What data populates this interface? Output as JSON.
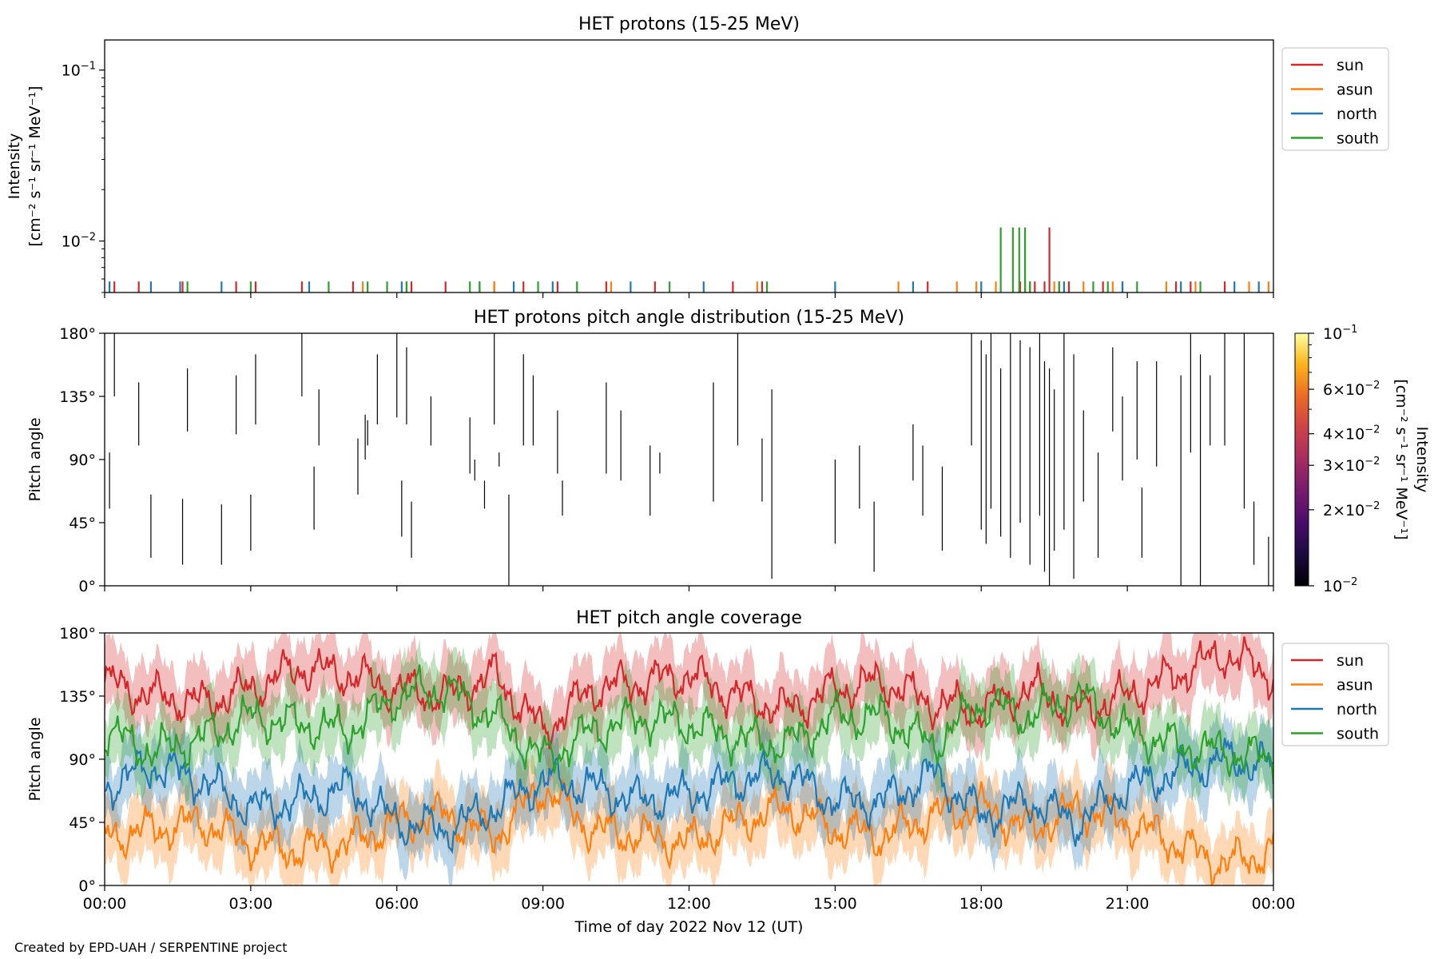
{
  "footer": "Created by EPD-UAH / SERPENTINE project",
  "colors": {
    "sun": "#d62728",
    "asun": "#ff7f0e",
    "north": "#1f77b4",
    "south": "#2ca02c"
  },
  "chart_data": [
    {
      "type": "line",
      "id": "intensity",
      "title": "HET protons (15-25 MeV)",
      "ylabel_lines": [
        "Intensity",
        "[cm⁻² s⁻¹ sr⁻¹ MeV⁻¹]"
      ],
      "yscale": "log",
      "ylim": [
        0.005,
        0.15
      ],
      "yticks": [
        {
          "value": 0.1,
          "base": "10",
          "exp": "−1"
        },
        {
          "value": 0.01,
          "base": "10",
          "exp": "−2"
        }
      ],
      "xlim_hours": [
        0,
        24
      ],
      "legend": {
        "position": "outside-right",
        "entries": [
          "sun",
          "asun",
          "north",
          "south"
        ]
      },
      "series": [
        {
          "name": "sun",
          "key": "sun",
          "spikes": [
            [
              0.2,
              0.0058
            ],
            [
              0.7,
              0.0058
            ],
            [
              1.6,
              0.0058
            ],
            [
              2.7,
              0.0058
            ],
            [
              3.1,
              0.0058
            ],
            [
              4.05,
              0.0058
            ],
            [
              5.1,
              0.0058
            ],
            [
              6.2,
              0.0058
            ],
            [
              6.3,
              0.0058
            ],
            [
              7.0,
              0.0058
            ],
            [
              8.0,
              0.0058
            ],
            [
              8.6,
              0.0058
            ],
            [
              9.3,
              0.0058
            ],
            [
              10.3,
              0.0058
            ],
            [
              11.3,
              0.0058
            ],
            [
              12.9,
              0.0058
            ],
            [
              13.5,
              0.0058
            ],
            [
              16.9,
              0.0058
            ],
            [
              18.8,
              0.0058
            ],
            [
              18.9,
              0.0058
            ],
            [
              19.0,
              0.0058
            ],
            [
              19.1,
              0.0058
            ],
            [
              19.3,
              0.0058
            ],
            [
              19.4,
              0.012
            ],
            [
              19.6,
              0.0058
            ],
            [
              19.8,
              0.0058
            ],
            [
              20.5,
              0.0058
            ],
            [
              20.9,
              0.0058
            ],
            [
              22.0,
              0.0058
            ],
            [
              22.3,
              0.0058
            ],
            [
              23.0,
              0.0058
            ]
          ]
        },
        {
          "name": "asun",
          "key": "asun",
          "spikes": [
            [
              5.3,
              0.0058
            ],
            [
              8.0,
              0.0058
            ],
            [
              10.4,
              0.0058
            ],
            [
              13.4,
              0.0058
            ],
            [
              16.3,
              0.0058
            ],
            [
              17.5,
              0.0058
            ],
            [
              17.9,
              0.0058
            ],
            [
              18.3,
              0.0058
            ],
            [
              19.5,
              0.0058
            ],
            [
              20.1,
              0.0058
            ],
            [
              20.7,
              0.0058
            ],
            [
              21.8,
              0.0058
            ],
            [
              22.4,
              0.0058
            ],
            [
              23.5,
              0.0058
            ],
            [
              23.9,
              0.0058
            ]
          ]
        },
        {
          "name": "north",
          "key": "north",
          "spikes": [
            [
              0.1,
              0.0058
            ],
            [
              0.95,
              0.0058
            ],
            [
              1.55,
              0.0058
            ],
            [
              2.4,
              0.0058
            ],
            [
              4.2,
              0.0058
            ],
            [
              6.1,
              0.0058
            ],
            [
              7.7,
              0.0058
            ],
            [
              8.4,
              0.0058
            ],
            [
              9.2,
              0.0058
            ],
            [
              10.8,
              0.0058
            ],
            [
              12.3,
              0.0058
            ],
            [
              15.0,
              0.0058
            ],
            [
              16.6,
              0.0058
            ],
            [
              18.0,
              0.0058
            ],
            [
              19.7,
              0.0058
            ],
            [
              20.9,
              0.0058
            ],
            [
              22.1,
              0.0058
            ],
            [
              23.2,
              0.0058
            ],
            [
              23.7,
              0.0058
            ]
          ]
        },
        {
          "name": "south",
          "key": "south",
          "spikes": [
            [
              1.7,
              0.0058
            ],
            [
              3.0,
              0.0058
            ],
            [
              4.6,
              0.0058
            ],
            [
              5.4,
              0.0058
            ],
            [
              5.8,
              0.0058
            ],
            [
              6.2,
              0.0058
            ],
            [
              7.5,
              0.0058
            ],
            [
              7.7,
              0.0058
            ],
            [
              8.9,
              0.0058
            ],
            [
              9.7,
              0.0058
            ],
            [
              11.6,
              0.0058
            ],
            [
              13.6,
              0.0058
            ],
            [
              18.4,
              0.012
            ],
            [
              18.65,
              0.012
            ],
            [
              18.78,
              0.012
            ],
            [
              18.9,
              0.012
            ],
            [
              19.0,
              0.0058
            ],
            [
              19.6,
              0.0058
            ],
            [
              20.3,
              0.0058
            ],
            [
              20.6,
              0.0058
            ],
            [
              21.2,
              0.0058
            ],
            [
              22.5,
              0.0058
            ]
          ]
        }
      ]
    },
    {
      "type": "heatmap",
      "id": "pad",
      "title": "HET protons pitch angle distribution (15-25 MeV)",
      "ylabel": "Pitch angle",
      "ylim": [
        0,
        180
      ],
      "yticks": [
        "0°",
        "45°",
        "90°",
        "135°",
        "180°"
      ],
      "xlim_hours": [
        0,
        24
      ],
      "colorbar": {
        "label_lines": [
          "Intensity",
          "[cm⁻² s⁻¹ sr⁻¹ MeV⁻¹]"
        ],
        "scale": "log",
        "range": [
          0.01,
          0.1
        ],
        "ticks": [
          {
            "value": 0.1,
            "text": "10",
            "exp": "−1"
          },
          {
            "value": 0.06,
            "text": "6×10",
            "exp": "−2"
          },
          {
            "value": 0.04,
            "text": "4×10",
            "exp": "−2"
          },
          {
            "value": 0.03,
            "text": "3×10",
            "exp": "−2"
          },
          {
            "value": 0.02,
            "text": "2×10",
            "exp": "−2"
          },
          {
            "value": 0.01,
            "text": "10",
            "exp": "−2"
          }
        ]
      },
      "segments": [
        [
          0.1,
          55,
          95
        ],
        [
          0.2,
          135,
          180
        ],
        [
          0.7,
          100,
          145
        ],
        [
          0.95,
          20,
          65
        ],
        [
          1.6,
          15,
          62
        ],
        [
          1.7,
          110,
          155
        ],
        [
          2.4,
          15,
          58
        ],
        [
          2.7,
          108,
          150
        ],
        [
          3.0,
          25,
          65
        ],
        [
          3.1,
          115,
          165
        ],
        [
          4.05,
          135,
          180
        ],
        [
          4.3,
          40,
          85
        ],
        [
          4.4,
          100,
          140
        ],
        [
          5.2,
          65,
          105
        ],
        [
          5.35,
          90,
          122
        ],
        [
          5.4,
          100,
          118
        ],
        [
          5.6,
          115,
          165
        ],
        [
          6.0,
          120,
          180
        ],
        [
          6.1,
          35,
          75
        ],
        [
          6.2,
          115,
          170
        ],
        [
          6.3,
          20,
          60
        ],
        [
          6.7,
          100,
          135
        ],
        [
          7.5,
          80,
          120
        ],
        [
          7.6,
          75,
          90
        ],
        [
          7.8,
          55,
          75
        ],
        [
          8.0,
          115,
          180
        ],
        [
          8.1,
          85,
          95
        ],
        [
          8.3,
          0,
          65
        ],
        [
          8.6,
          100,
          165
        ],
        [
          8.8,
          100,
          150
        ],
        [
          9.3,
          80,
          125
        ],
        [
          9.4,
          50,
          75
        ],
        [
          10.3,
          80,
          145
        ],
        [
          10.6,
          75,
          125
        ],
        [
          11.2,
          50,
          100
        ],
        [
          11.4,
          80,
          95
        ],
        [
          12.5,
          60,
          145
        ],
        [
          13.0,
          100,
          180
        ],
        [
          13.5,
          60,
          105
        ],
        [
          13.7,
          5,
          140
        ],
        [
          15.0,
          30,
          90
        ],
        [
          15.5,
          55,
          100
        ],
        [
          15.8,
          10,
          60
        ],
        [
          16.6,
          75,
          115
        ],
        [
          16.8,
          50,
          100
        ],
        [
          17.2,
          25,
          85
        ],
        [
          17.8,
          100,
          180
        ],
        [
          18.0,
          40,
          175
        ],
        [
          18.1,
          30,
          165
        ],
        [
          18.2,
          55,
          180
        ],
        [
          18.4,
          35,
          155
        ],
        [
          18.6,
          20,
          180
        ],
        [
          18.8,
          45,
          175
        ],
        [
          19.0,
          15,
          170
        ],
        [
          19.2,
          50,
          180
        ],
        [
          19.3,
          10,
          160
        ],
        [
          19.4,
          0,
          155
        ],
        [
          19.5,
          25,
          140
        ],
        [
          19.7,
          40,
          180
        ],
        [
          19.9,
          5,
          165
        ],
        [
          20.1,
          60,
          125
        ],
        [
          20.4,
          20,
          95
        ],
        [
          20.7,
          110,
          170
        ],
        [
          20.9,
          75,
          135
        ],
        [
          21.2,
          90,
          160
        ],
        [
          21.3,
          20,
          70
        ],
        [
          21.6,
          85,
          160
        ],
        [
          22.1,
          0,
          150
        ],
        [
          22.3,
          95,
          180
        ],
        [
          22.5,
          0,
          165
        ],
        [
          22.7,
          100,
          150
        ],
        [
          23.0,
          100,
          180
        ],
        [
          23.4,
          55,
          180
        ],
        [
          23.6,
          15,
          60
        ],
        [
          23.9,
          0,
          35
        ]
      ]
    },
    {
      "type": "area",
      "id": "coverage",
      "title": "HET pitch angle coverage",
      "ylabel": "Pitch angle",
      "xlabel": "Time of day 2022 Nov 12 (UT)",
      "ylim": [
        0,
        180
      ],
      "yticks": [
        "0°",
        "45°",
        "90°",
        "135°",
        "180°"
      ],
      "xlim_hours": [
        0,
        24
      ],
      "xticks": [
        "00:00",
        "03:00",
        "06:00",
        "09:00",
        "12:00",
        "15:00",
        "18:00",
        "21:00",
        "00:00"
      ],
      "legend": {
        "position": "outside-right",
        "entries": [
          "sun",
          "asun",
          "north",
          "south"
        ]
      },
      "band_halfwidth_deg": 22,
      "series": [
        {
          "name": "sun",
          "key": "sun",
          "x": [
            0,
            1,
            2,
            3,
            4,
            5,
            6,
            7,
            8,
            9,
            10,
            11,
            12,
            13,
            14,
            15,
            16,
            17,
            18,
            19,
            20,
            21,
            22,
            23,
            24
          ],
          "y": [
            145,
            135,
            130,
            140,
            155,
            150,
            140,
            135,
            150,
            110,
            140,
            145,
            150,
            135,
            125,
            140,
            145,
            130,
            125,
            140,
            125,
            135,
            150,
            165,
            150
          ]
        },
        {
          "name": "asun",
          "key": "asun",
          "x": [
            0,
            1,
            2,
            3,
            4,
            5,
            6,
            7,
            8,
            9,
            10,
            11,
            12,
            13,
            14,
            15,
            16,
            17,
            18,
            19,
            20,
            21,
            22,
            23,
            24
          ],
          "y": [
            35,
            40,
            45,
            30,
            25,
            30,
            45,
            50,
            35,
            70,
            40,
            35,
            30,
            45,
            55,
            40,
            35,
            50,
            55,
            40,
            55,
            45,
            30,
            15,
            25
          ]
        },
        {
          "name": "north",
          "key": "north",
          "x": [
            0,
            1,
            2,
            3,
            4,
            5,
            6,
            7,
            8,
            9,
            10,
            11,
            12,
            13,
            14,
            15,
            16,
            17,
            18,
            19,
            20,
            21,
            22,
            23,
            24
          ],
          "y": [
            70,
            85,
            75,
            55,
            60,
            70,
            45,
            40,
            55,
            75,
            70,
            60,
            65,
            75,
            80,
            60,
            60,
            80,
            50,
            60,
            45,
            70,
            80,
            90,
            85
          ]
        },
        {
          "name": "south",
          "key": "south",
          "x": [
            0,
            1,
            2,
            3,
            4,
            5,
            6,
            7,
            8,
            9,
            10,
            11,
            12,
            13,
            14,
            15,
            16,
            17,
            18,
            19,
            20,
            21,
            22,
            23,
            24
          ],
          "y": [
            110,
            95,
            105,
            120,
            115,
            110,
            135,
            140,
            120,
            90,
            110,
            120,
            115,
            105,
            100,
            120,
            120,
            100,
            130,
            120,
            135,
            110,
            100,
            95,
            90
          ]
        }
      ]
    }
  ]
}
